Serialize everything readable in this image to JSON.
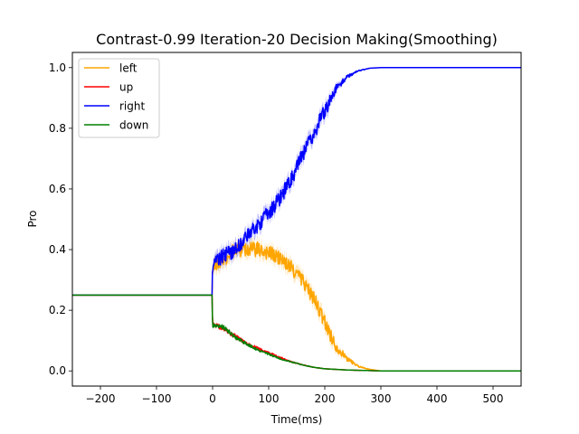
{
  "chart_data": {
    "type": "line",
    "title": "Contrast-0.99 Iteration-20 Decision Making(Smoothing)",
    "xlabel": "Time(ms)",
    "ylabel": "Pro",
    "xlim": [
      -250,
      550
    ],
    "ylim": [
      -0.05,
      1.05
    ],
    "x_ticks": [
      -200,
      -100,
      0,
      100,
      200,
      300,
      400,
      500
    ],
    "x_tick_labels": [
      "−200",
      "−100",
      "0",
      "100",
      "200",
      "300",
      "400",
      "500"
    ],
    "y_ticks": [
      0.0,
      0.2,
      0.4,
      0.6,
      0.8,
      1.0
    ],
    "y_tick_labels": [
      "0.0",
      "0.2",
      "0.4",
      "0.6",
      "0.8",
      "1.0"
    ],
    "grid": false,
    "legend_position": "top-left",
    "shaded_band": true,
    "series": [
      {
        "name": "left",
        "color": "#ffa500",
        "noise": 0.025,
        "x": [
          -250,
          -1,
          0,
          5,
          20,
          40,
          60,
          80,
          100,
          120,
          140,
          160,
          180,
          200,
          220,
          240,
          260,
          280,
          300,
          550
        ],
        "values": [
          0.25,
          0.25,
          0.34,
          0.35,
          0.37,
          0.4,
          0.4,
          0.4,
          0.39,
          0.37,
          0.34,
          0.3,
          0.24,
          0.16,
          0.08,
          0.04,
          0.015,
          0.005,
          0.0,
          0.0
        ]
      },
      {
        "name": "up",
        "color": "#ff0000",
        "noise": 0.007,
        "x": [
          -250,
          -1,
          0,
          5,
          20,
          40,
          60,
          80,
          100,
          120,
          140,
          160,
          180,
          200,
          240,
          300,
          550
        ],
        "values": [
          0.25,
          0.25,
          0.16,
          0.15,
          0.14,
          0.115,
          0.09,
          0.075,
          0.06,
          0.045,
          0.03,
          0.02,
          0.012,
          0.007,
          0.003,
          0.0,
          0.0
        ]
      },
      {
        "name": "right",
        "color": "#0000ff",
        "noise": 0.025,
        "x": [
          -250,
          -1,
          0,
          5,
          20,
          40,
          60,
          80,
          100,
          120,
          140,
          160,
          180,
          200,
          220,
          240,
          260,
          280,
          300,
          550
        ],
        "values": [
          0.25,
          0.25,
          0.35,
          0.36,
          0.38,
          0.4,
          0.44,
          0.48,
          0.52,
          0.57,
          0.63,
          0.71,
          0.78,
          0.86,
          0.93,
          0.97,
          0.99,
          0.998,
          1.0,
          1.0
        ]
      },
      {
        "name": "down",
        "color": "#008000",
        "noise": 0.007,
        "x": [
          -250,
          -1,
          0,
          5,
          20,
          40,
          60,
          80,
          100,
          120,
          140,
          160,
          180,
          200,
          240,
          300,
          550
        ],
        "values": [
          0.25,
          0.25,
          0.15,
          0.145,
          0.145,
          0.11,
          0.09,
          0.07,
          0.055,
          0.04,
          0.03,
          0.02,
          0.012,
          0.007,
          0.003,
          0.0,
          0.0
        ]
      }
    ]
  }
}
